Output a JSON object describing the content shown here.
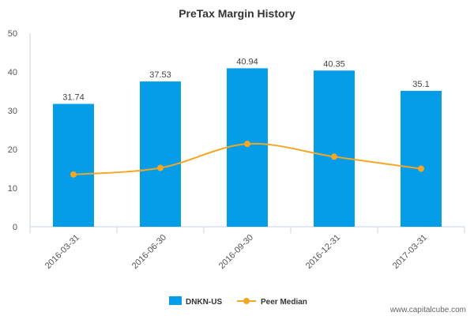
{
  "chart_data": {
    "type": "bar",
    "title": "PreTax Margin History",
    "xlabel": "",
    "ylabel": "",
    "categories": [
      "2016-03-31",
      "2016-06-30",
      "2016-09-30",
      "2016-12-31",
      "2017-03-31"
    ],
    "ylim": [
      0,
      50
    ],
    "yticks": [
      0,
      10,
      20,
      30,
      40,
      50
    ],
    "grid": false,
    "legend_position": "bottom-center",
    "series": [
      {
        "name": "DNKN-US",
        "kind": "bar",
        "color": "#069DE8",
        "values": [
          31.74,
          37.53,
          40.94,
          40.35,
          35.1
        ],
        "labels": [
          "31.74",
          "37.53",
          "40.94",
          "40.35",
          "35.1"
        ]
      },
      {
        "name": "Peer Median",
        "kind": "line",
        "color": "#F5A623",
        "values": [
          13.5,
          15.2,
          21.4,
          18.1,
          15.0
        ]
      }
    ]
  },
  "footer": {
    "source": "www.capitalcube.com"
  }
}
